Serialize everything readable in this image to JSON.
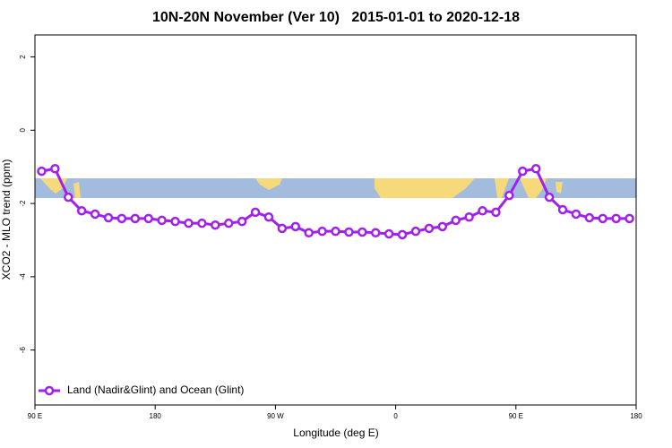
{
  "chart_data": {
    "type": "line",
    "title": "10N-20N November (Ver 10)   2015-01-01 to 2020-12-18",
    "x_label": "Longitude (deg E)",
    "y_label": "XCO2 - MLO trend (ppm)",
    "x": [
      95,
      105,
      115,
      125,
      135,
      145,
      155,
      165,
      175,
      185,
      195,
      205,
      215,
      225,
      235,
      245,
      255,
      265,
      275,
      285,
      295,
      305,
      315,
      325,
      335,
      345,
      355,
      365,
      375,
      385,
      395,
      405,
      415,
      425,
      435,
      445,
      455,
      465,
      475,
      485,
      495,
      505,
      515,
      525,
      535
    ],
    "series": [
      {
        "name": "Land (Nadir&Glint) and Ocean (Glint)",
        "color": "#a020f0",
        "values": [
          -1.12,
          -1.05,
          -1.83,
          -2.2,
          -2.29,
          -2.39,
          -2.41,
          -2.41,
          -2.41,
          -2.46,
          -2.49,
          -2.54,
          -2.54,
          -2.59,
          -2.54,
          -2.49,
          -2.24,
          -2.37,
          -2.68,
          -2.63,
          -2.8,
          -2.76,
          -2.76,
          -2.78,
          -2.78,
          -2.8,
          -2.83,
          -2.85,
          -2.76,
          -2.68,
          -2.63,
          -2.46,
          -2.37,
          -2.2,
          -2.24,
          -1.78,
          -1.12,
          -1.05,
          -1.83,
          -2.17,
          -2.29,
          -2.39,
          -2.41,
          -2.41,
          -2.41
        ]
      }
    ],
    "xlim": [
      90,
      540
    ],
    "xticks": [
      {
        "value": 90,
        "label": "90 E"
      },
      180,
      {
        "value": 270,
        "label": "90 W"
      },
      {
        "value": 360,
        "label": "0"
      },
      {
        "value": 450,
        "label": "90 E"
      },
      180
    ],
    "ylim": [
      -7.5,
      2.6
    ],
    "yticks": [
      -6,
      -4,
      -2,
      0,
      2
    ],
    "legend": "bottom-left"
  }
}
